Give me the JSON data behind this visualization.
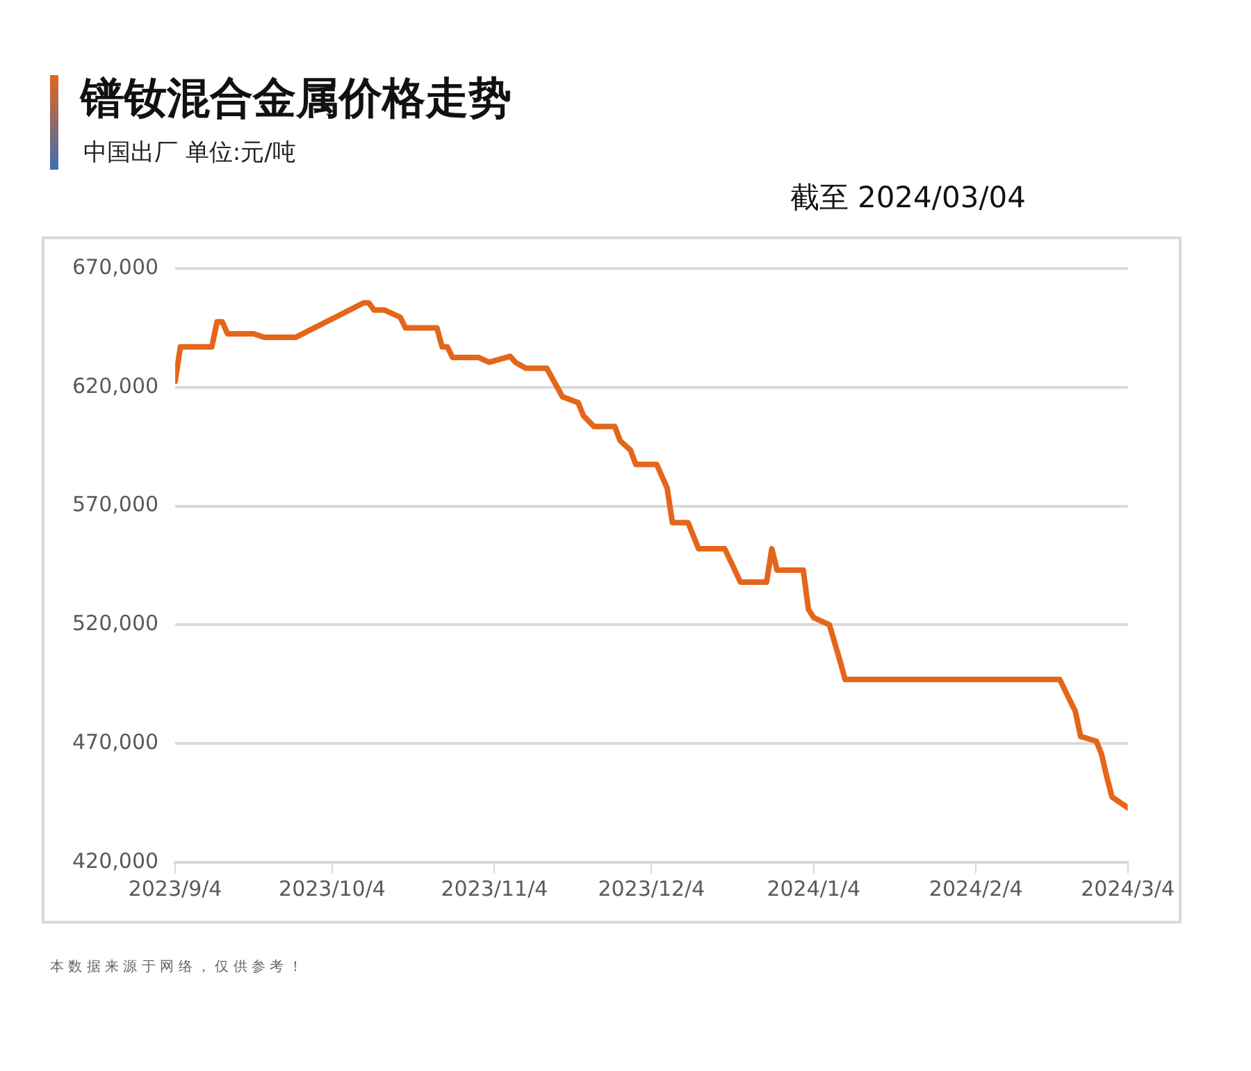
{
  "chart_data": {
    "type": "line",
    "title": "镨钕混合金属价格走势",
    "subtitle": "中国出厂  单位:元/吨",
    "annotations": [
      "截至 2024/03/04",
      "本 数 据 来 源 于 网 络 ， 仅 供 参 考 ！"
    ],
    "x": [
      "2023-09-04",
      "2023-09-05",
      "2023-09-11",
      "2023-09-12",
      "2023-09-13",
      "2023-09-14",
      "2023-09-19",
      "2023-09-21",
      "2023-09-27",
      "2023-10-10",
      "2023-10-11",
      "2023-10-12",
      "2023-10-14",
      "2023-10-17",
      "2023-10-18",
      "2023-10-24",
      "2023-10-25",
      "2023-10-26",
      "2023-10-27",
      "2023-11-01",
      "2023-11-03",
      "2023-11-07",
      "2023-11-08",
      "2023-11-10",
      "2023-11-14",
      "2023-11-17",
      "2023-11-20",
      "2023-11-21",
      "2023-11-23",
      "2023-11-27",
      "2023-11-28",
      "2023-11-30",
      "2023-12-01",
      "2023-12-05",
      "2023-12-07",
      "2023-12-08",
      "2023-12-11",
      "2023-12-13",
      "2023-12-18",
      "2023-12-21",
      "2023-12-26",
      "2023-12-27",
      "2023-12-28",
      "2024-01-02",
      "2024-01-03",
      "2024-01-04",
      "2024-01-07",
      "2024-01-09",
      "2024-01-10",
      "2024-02-20",
      "2024-02-23",
      "2024-02-24",
      "2024-02-27",
      "2024-02-28",
      "2024-02-29",
      "2024-03-01",
      "2024-03-04"
    ],
    "series": [
      {
        "color": "#e4661b",
        "values": [
          622500,
          637000,
          637000,
          647500,
          647500,
          642500,
          642500,
          641000,
          641000,
          655500,
          655500,
          652500,
          652500,
          649500,
          645000,
          645000,
          637000,
          637000,
          632500,
          632500,
          630500,
          633000,
          630500,
          628000,
          628000,
          616000,
          613500,
          608000,
          603500,
          603500,
          597500,
          593500,
          587500,
          587500,
          577500,
          563000,
          563000,
          552000,
          552000,
          538000,
          538000,
          552000,
          543000,
          543000,
          526500,
          523000,
          520000,
          505000,
          497000,
          497000,
          483500,
          473000,
          471000,
          465500,
          456000,
          447500,
          443000
        ]
      }
    ],
    "xlim": [
      "2023-09-04",
      "2024-03-04"
    ],
    "xticks": [
      {
        "value": "2023-09-04",
        "label": "2023/9/4"
      },
      {
        "value": "2023-10-04",
        "label": "2023/10/4"
      },
      {
        "value": "2023-11-04",
        "label": "2023/11/4"
      },
      {
        "value": "2023-12-04",
        "label": "2023/12/4"
      },
      {
        "value": "2024-01-04",
        "label": "2024/1/4"
      },
      {
        "value": "2024-02-04",
        "label": "2024/2/4"
      },
      {
        "value": "2024-03-04",
        "label": "2024/3/4"
      }
    ],
    "ylim": [
      420000,
      670000
    ],
    "yticks": [
      {
        "value": 420000,
        "label": "420,000"
      },
      {
        "value": 470000,
        "label": "470,000"
      },
      {
        "value": 520000,
        "label": "520,000"
      },
      {
        "value": 570000,
        "label": "570,000"
      },
      {
        "value": 620000,
        "label": "620,000"
      },
      {
        "value": 670000,
        "label": "670,000"
      }
    ],
    "grid": "y",
    "legend": false,
    "marker": "none",
    "line_style": "solid"
  }
}
